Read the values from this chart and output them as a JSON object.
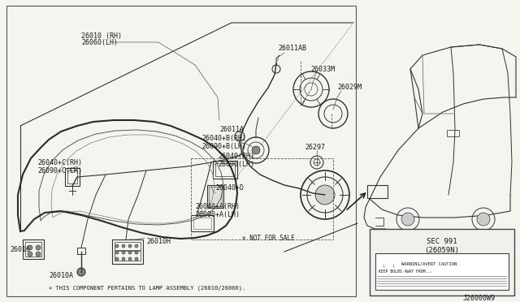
{
  "bg_color": "#f5f5f0",
  "fig_width": 6.4,
  "fig_height": 3.72,
  "dpi": 100,
  "sec_box": {
    "title_line1": "SEC 991",
    "title_line2": "(26059N)",
    "warning_text": "WARNING/AVERT CAUTION",
    "warning_text2": "KEEP BULBS AWAY..."
  },
  "footnote": "J26000W9"
}
